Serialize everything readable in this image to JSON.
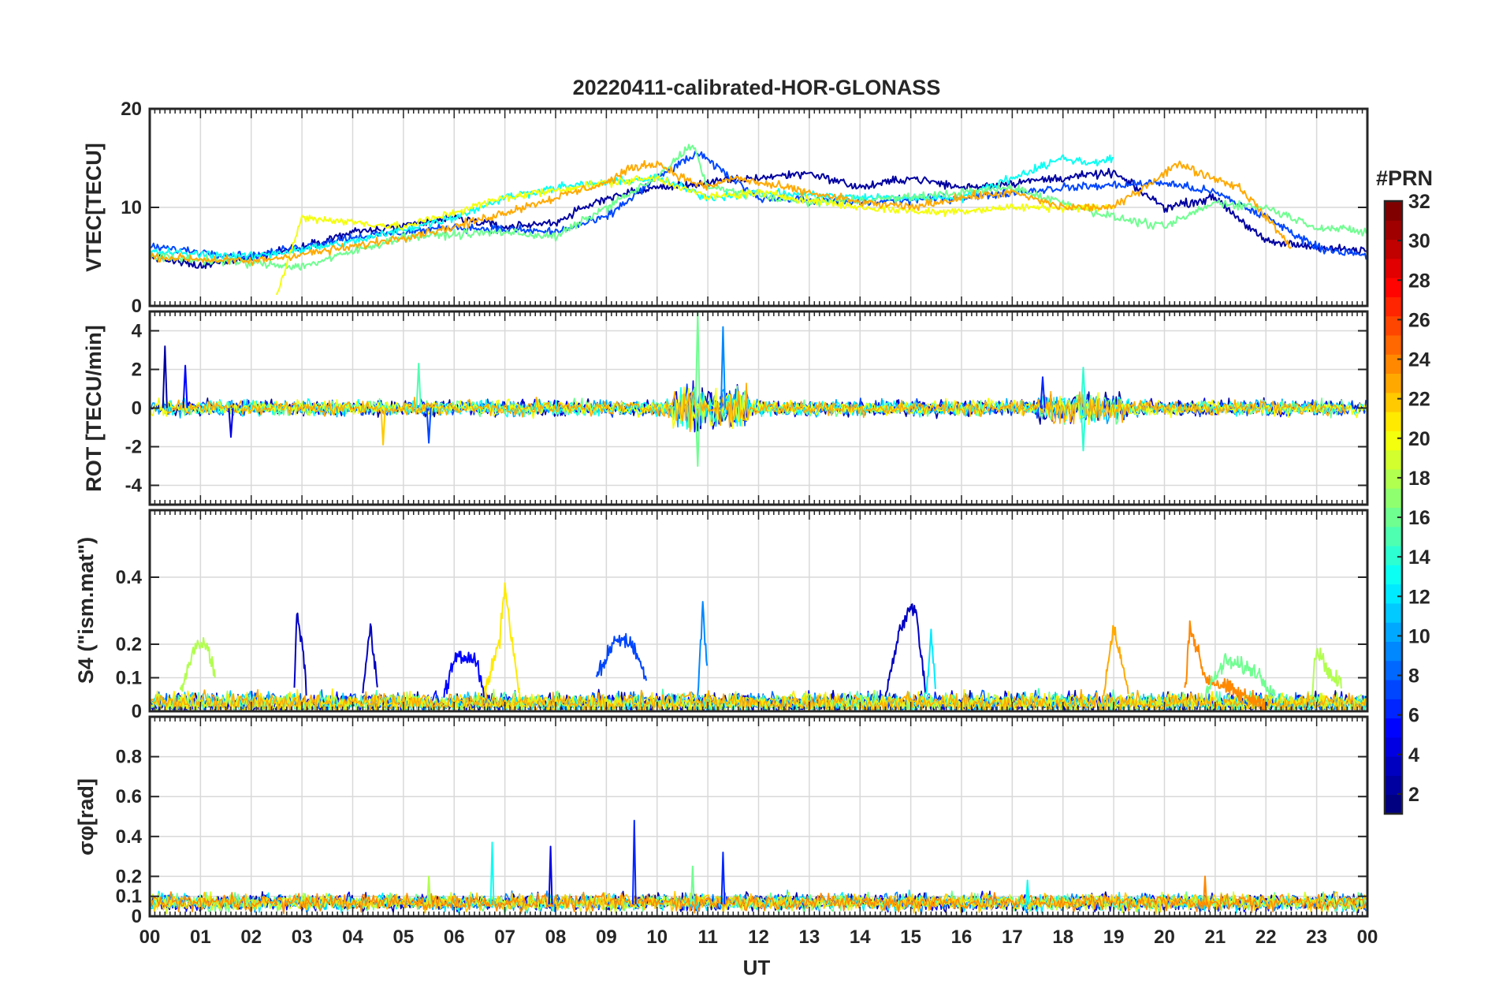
{
  "title": "20220411-calibrated-HOR-GLONASS",
  "xlabel": "UT",
  "colorbar": {
    "label": "#PRN",
    "ticks": [
      "2",
      "4",
      "6",
      "8",
      "10",
      "12",
      "14",
      "16",
      "18",
      "20",
      "22",
      "24",
      "26",
      "28",
      "30",
      "32"
    ],
    "range": [
      1,
      32
    ],
    "colormap": "jet",
    "levels": 32
  },
  "chart_data": [
    {
      "type": "line",
      "panel": "VTEC",
      "ylabel": "VTEC[TECU]",
      "ylim": [
        0,
        20
      ],
      "yticks": [
        "0",
        "10",
        "20"
      ],
      "xlim": [
        0,
        24
      ],
      "xticks": [
        "00",
        "01",
        "02",
        "03",
        "04",
        "05",
        "06",
        "07",
        "08",
        "09",
        "10",
        "11",
        "12",
        "13",
        "14",
        "15",
        "16",
        "17",
        "18",
        "19",
        "20",
        "21",
        "22",
        "23",
        "00"
      ],
      "grid": true,
      "series": [
        {
          "prn": 2,
          "x": [
            0,
            1,
            2,
            3,
            4,
            5,
            6,
            7,
            8,
            9,
            10,
            11,
            12,
            13,
            14,
            15,
            16,
            17,
            18,
            19,
            20,
            21,
            22,
            23,
            24
          ],
          "y": [
            5,
            4,
            5,
            6,
            7.5,
            8,
            9,
            8,
            8.5,
            11,
            12,
            12.5,
            13,
            13.5,
            12,
            13,
            12,
            12.5,
            13,
            13.5,
            10,
            11,
            6.5,
            6,
            5.5
          ]
        },
        {
          "prn": 7,
          "x": [
            0,
            2,
            4,
            6,
            8,
            9,
            10,
            10.8,
            12,
            14,
            16,
            18,
            20,
            21,
            22,
            23,
            24
          ],
          "y": [
            6,
            5,
            7,
            8,
            7.5,
            9,
            13,
            15.5,
            11,
            10.5,
            11,
            12,
            12.5,
            11.5,
            9,
            6,
            5
          ]
        },
        {
          "prn": 13,
          "x": [
            0,
            2,
            4,
            6,
            7,
            8,
            10,
            11,
            12,
            14,
            16,
            18,
            18.5,
            19
          ],
          "y": [
            5.5,
            5,
            6.5,
            9,
            11,
            12,
            13,
            11,
            11.5,
            11,
            11,
            15,
            14.5,
            15
          ]
        },
        {
          "prn": 16,
          "x": [
            0,
            3,
            5,
            7,
            8,
            9,
            10,
            10.7,
            11,
            13,
            15,
            17,
            19,
            20,
            21,
            22,
            23,
            24
          ],
          "y": [
            5,
            4,
            7,
            7.5,
            7,
            10,
            13,
            16.5,
            12,
            10.5,
            11,
            12,
            9,
            8,
            10.5,
            10,
            8,
            7.5
          ]
        },
        {
          "prn": 20,
          "x": [
            2.5,
            3,
            5,
            7,
            9,
            10,
            11,
            12,
            14,
            15.5,
            17,
            19
          ],
          "y": [
            1,
            9,
            8,
            11,
            12.5,
            13,
            11,
            11.5,
            10,
            9.5,
            10,
            10
          ]
        },
        {
          "prn": 23,
          "x": [
            0,
            2,
            4,
            6,
            8,
            9,
            9.5,
            10,
            10.5,
            11,
            11.5,
            12,
            13,
            14,
            15,
            16,
            17,
            18,
            19,
            20.3,
            20.7,
            21.5,
            22.5
          ],
          "y": [
            5,
            4.5,
            6,
            8,
            11,
            12.5,
            14,
            14.5,
            13,
            12,
            13,
            12.5,
            11.5,
            10.5,
            10,
            11,
            11.5,
            10,
            10,
            14.5,
            13.5,
            12,
            6
          ]
        }
      ]
    },
    {
      "type": "line",
      "panel": "ROT",
      "ylabel": "ROT [TECU/min]",
      "ylim": [
        -5,
        5
      ],
      "yticks": [
        "-4",
        "-2",
        "0",
        "2",
        "4"
      ],
      "xlim": [
        0,
        24
      ],
      "grid": true,
      "spikes": [
        {
          "prn": 2,
          "x": 0.3,
          "y": 3.2
        },
        {
          "prn": 5,
          "x": 0.7,
          "y": 2.2
        },
        {
          "prn": 4,
          "x": 1.6,
          "y": -1.5
        },
        {
          "prn": 15,
          "x": 5.3,
          "y": 2.3
        },
        {
          "prn": 22,
          "x": 4.6,
          "y": -1.9
        },
        {
          "prn": 7,
          "x": 5.5,
          "y": -1.8
        },
        {
          "prn": 16,
          "x": 10.8,
          "y": 5.0
        },
        {
          "prn": 16,
          "x": 10.8,
          "y": -3.0
        },
        {
          "prn": 9,
          "x": 11.3,
          "y": 4.2
        },
        {
          "prn": 14,
          "x": 18.4,
          "y": 2.1
        },
        {
          "prn": 14,
          "x": 18.4,
          "y": -2.2
        },
        {
          "prn": 6,
          "x": 17.6,
          "y": 1.6
        }
      ]
    },
    {
      "type": "line",
      "panel": "S4",
      "ylabel": "S4 (\"ism.mat\")",
      "ylim": [
        0,
        0.6
      ],
      "yticks": [
        "0",
        "0.1",
        "0.2",
        "0.4"
      ],
      "xlim": [
        0,
        24
      ],
      "grid": true,
      "series": [
        {
          "prn": 18,
          "x": [
            0.6,
            0.9,
            1.1,
            1.3
          ],
          "y": [
            0.05,
            0.2,
            0.21,
            0.1
          ]
        },
        {
          "prn": 3,
          "x": [
            2.85,
            2.9,
            3.0,
            3.1
          ],
          "y": [
            0.05,
            0.3,
            0.2,
            0.05
          ]
        },
        {
          "prn": 3,
          "x": [
            4.2,
            4.35,
            4.5
          ],
          "y": [
            0.05,
            0.26,
            0.05
          ]
        },
        {
          "prn": 5,
          "x": [
            5.8,
            6.0,
            6.4,
            6.6
          ],
          "y": [
            0.05,
            0.15,
            0.17,
            0.05
          ]
        },
        {
          "prn": 21,
          "x": [
            6.6,
            6.9,
            7.0,
            7.1,
            7.3
          ],
          "y": [
            0.05,
            0.22,
            0.38,
            0.25,
            0.05
          ]
        },
        {
          "prn": 7,
          "x": [
            8.8,
            9.2,
            9.5,
            9.8
          ],
          "y": [
            0.1,
            0.22,
            0.2,
            0.1
          ]
        },
        {
          "prn": 9,
          "x": [
            10.8,
            10.9,
            11.0
          ],
          "y": [
            0.05,
            0.32,
            0.1
          ]
        },
        {
          "prn": 3,
          "x": [
            14.5,
            14.8,
            15.0,
            15.1,
            15.3
          ],
          "y": [
            0.05,
            0.25,
            0.31,
            0.3,
            0.05
          ]
        },
        {
          "prn": 12,
          "x": [
            15.3,
            15.4,
            15.5
          ],
          "y": [
            0.05,
            0.23,
            0.05
          ]
        },
        {
          "prn": 23,
          "x": [
            18.8,
            19.0,
            19.3
          ],
          "y": [
            0.05,
            0.25,
            0.05
          ]
        },
        {
          "prn": 24,
          "x": [
            20.4,
            20.5,
            20.8,
            21.5,
            22
          ],
          "y": [
            0.05,
            0.26,
            0.1,
            0.05,
            0.02
          ]
        },
        {
          "prn": 16,
          "x": [
            20.8,
            21.2,
            21.8,
            22.2
          ],
          "y": [
            0.05,
            0.15,
            0.12,
            0.05
          ]
        },
        {
          "prn": 18,
          "x": [
            22.9,
            23.0,
            23.3,
            23.5
          ],
          "y": [
            0.05,
            0.19,
            0.1,
            0.08
          ]
        }
      ]
    },
    {
      "type": "line",
      "panel": "sigma_phi",
      "ylabel": "σφ[rad]",
      "ylim": [
        0,
        1
      ],
      "yticks": [
        "0",
        "0.1",
        "0.2",
        "0.4",
        "0.6",
        "0.8"
      ],
      "xlim": [
        0,
        24
      ],
      "grid": true,
      "spikes": [
        {
          "prn": 13,
          "x": 6.75,
          "y": 0.37
        },
        {
          "prn": 4,
          "x": 7.9,
          "y": 0.35
        },
        {
          "prn": 6,
          "x": 9.55,
          "y": 0.48
        },
        {
          "prn": 16,
          "x": 10.7,
          "y": 0.25
        },
        {
          "prn": 6,
          "x": 11.3,
          "y": 0.32
        },
        {
          "prn": 18,
          "x": 5.5,
          "y": 0.2
        },
        {
          "prn": 13,
          "x": 17.3,
          "y": 0.18
        },
        {
          "prn": 24,
          "x": 20.8,
          "y": 0.2
        }
      ]
    }
  ]
}
